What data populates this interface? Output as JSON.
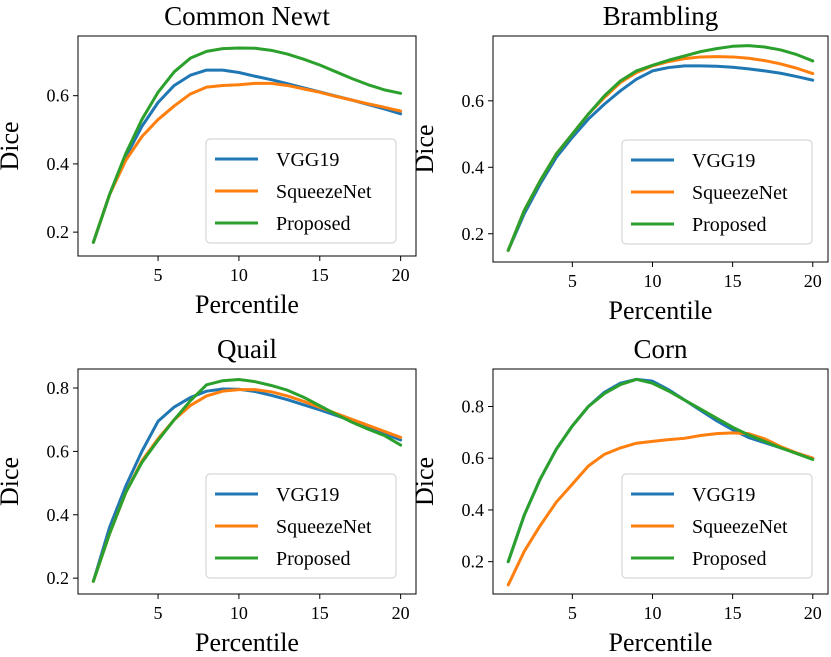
{
  "figure": {
    "ylabel": "Dice",
    "xlabel": "Percentile"
  },
  "chart_data": [
    {
      "type": "line",
      "title": "Common Newt",
      "xlabel": "Percentile",
      "ylabel": "Dice",
      "xlim": [
        0.05,
        20.95
      ],
      "ylim": [
        0.13,
        0.775
      ],
      "xticks": [
        5,
        10,
        15,
        20
      ],
      "xtick_labels": [
        "5",
        "10",
        "15",
        "20"
      ],
      "yticks": [
        0.2,
        0.4,
        0.6
      ],
      "ytick_labels": [
        "0.2",
        "0.4",
        "0.6"
      ],
      "legend": "lower-right",
      "x": [
        1,
        2,
        3,
        4,
        5,
        6,
        7,
        8,
        9,
        10,
        11,
        12,
        13,
        14,
        15,
        16,
        17,
        18,
        19,
        20
      ],
      "series": [
        {
          "name": "VGG19",
          "color": "#1f77b4",
          "values": [
            0.17,
            0.31,
            0.42,
            0.51,
            0.58,
            0.63,
            0.66,
            0.675,
            0.675,
            0.668,
            0.657,
            0.647,
            0.635,
            0.623,
            0.611,
            0.599,
            0.587,
            0.574,
            0.561,
            0.547
          ]
        },
        {
          "name": "SqueezeNet",
          "color": "#ff7f0e",
          "values": [
            0.17,
            0.31,
            0.41,
            0.48,
            0.53,
            0.57,
            0.605,
            0.625,
            0.63,
            0.632,
            0.636,
            0.636,
            0.63,
            0.62,
            0.61,
            0.598,
            0.587,
            0.576,
            0.566,
            0.555
          ]
        },
        {
          "name": "Proposed",
          "color": "#2ca02c",
          "values": [
            0.17,
            0.31,
            0.43,
            0.53,
            0.61,
            0.67,
            0.71,
            0.73,
            0.738,
            0.74,
            0.739,
            0.733,
            0.722,
            0.707,
            0.69,
            0.67,
            0.65,
            0.632,
            0.617,
            0.607
          ]
        }
      ]
    },
    {
      "type": "line",
      "title": "Brambling",
      "xlabel": "Percentile",
      "ylabel": "Dice",
      "xlim": [
        0.05,
        20.95
      ],
      "ylim": [
        0.115,
        0.795
      ],
      "xticks": [
        5,
        10,
        15,
        20
      ],
      "xtick_labels": [
        "5",
        "10",
        "15",
        "20"
      ],
      "yticks": [
        0.2,
        0.4,
        0.6
      ],
      "ytick_labels": [
        "0.2",
        "0.4",
        "0.6"
      ],
      "legend": "lower-right",
      "x": [
        1,
        2,
        3,
        4,
        5,
        6,
        7,
        8,
        9,
        10,
        11,
        12,
        13,
        14,
        15,
        16,
        17,
        18,
        19,
        20
      ],
      "series": [
        {
          "name": "VGG19",
          "color": "#1f77b4",
          "values": [
            0.15,
            0.26,
            0.35,
            0.43,
            0.49,
            0.545,
            0.59,
            0.63,
            0.665,
            0.69,
            0.7,
            0.705,
            0.705,
            0.704,
            0.701,
            0.696,
            0.69,
            0.683,
            0.673,
            0.662
          ]
        },
        {
          "name": "SqueezeNet",
          "color": "#ff7f0e",
          "values": [
            0.15,
            0.27,
            0.36,
            0.44,
            0.5,
            0.56,
            0.61,
            0.655,
            0.685,
            0.705,
            0.718,
            0.727,
            0.732,
            0.733,
            0.732,
            0.728,
            0.721,
            0.711,
            0.698,
            0.682
          ]
        },
        {
          "name": "Proposed",
          "color": "#2ca02c",
          "values": [
            0.15,
            0.27,
            0.36,
            0.44,
            0.5,
            0.56,
            0.615,
            0.66,
            0.69,
            0.707,
            0.722,
            0.735,
            0.748,
            0.757,
            0.764,
            0.766,
            0.762,
            0.753,
            0.739,
            0.72
          ]
        }
      ]
    },
    {
      "type": "line",
      "title": "Quail",
      "xlabel": "Percentile",
      "ylabel": "Dice",
      "xlim": [
        0.05,
        20.95
      ],
      "ylim": [
        0.15,
        0.86
      ],
      "xticks": [
        5,
        10,
        15,
        20
      ],
      "xtick_labels": [
        "5",
        "10",
        "15",
        "20"
      ],
      "yticks": [
        0.2,
        0.4,
        0.6,
        0.8
      ],
      "ytick_labels": [
        "0.2",
        "0.4",
        "0.6",
        "0.8"
      ],
      "legend": "lower-right",
      "x": [
        1,
        2,
        3,
        4,
        5,
        6,
        7,
        8,
        9,
        10,
        11,
        12,
        13,
        14,
        15,
        16,
        17,
        18,
        19,
        20
      ],
      "series": [
        {
          "name": "VGG19",
          "color": "#1f77b4",
          "values": [
            0.19,
            0.36,
            0.49,
            0.6,
            0.695,
            0.74,
            0.77,
            0.79,
            0.797,
            0.796,
            0.789,
            0.777,
            0.763,
            0.747,
            0.731,
            0.714,
            0.696,
            0.676,
            0.656,
            0.636
          ]
        },
        {
          "name": "SqueezeNet",
          "color": "#ff7f0e",
          "values": [
            0.19,
            0.34,
            0.47,
            0.57,
            0.64,
            0.7,
            0.745,
            0.775,
            0.79,
            0.795,
            0.795,
            0.788,
            0.775,
            0.758,
            0.739,
            0.72,
            0.701,
            0.682,
            0.663,
            0.644
          ]
        },
        {
          "name": "Proposed",
          "color": "#2ca02c",
          "values": [
            0.19,
            0.34,
            0.47,
            0.565,
            0.635,
            0.7,
            0.76,
            0.81,
            0.823,
            0.827,
            0.82,
            0.808,
            0.793,
            0.771,
            0.744,
            0.717,
            0.692,
            0.67,
            0.65,
            0.62
          ]
        }
      ]
    },
    {
      "type": "line",
      "title": "Corn",
      "xlabel": "Percentile",
      "ylabel": "Dice",
      "xlim": [
        0.05,
        20.95
      ],
      "ylim": [
        0.075,
        0.945
      ],
      "xticks": [
        5,
        10,
        15,
        20
      ],
      "xtick_labels": [
        "5",
        "10",
        "15",
        "20"
      ],
      "yticks": [
        0.2,
        0.4,
        0.6,
        0.8
      ],
      "ytick_labels": [
        "0.2",
        "0.4",
        "0.6",
        "0.8"
      ],
      "legend": "lower-right",
      "x": [
        1,
        2,
        3,
        4,
        5,
        6,
        7,
        8,
        9,
        10,
        11,
        12,
        13,
        14,
        15,
        16,
        17,
        18,
        19,
        20
      ],
      "series": [
        {
          "name": "VGG19",
          "color": "#1f77b4",
          "values": [
            0.2,
            0.38,
            0.52,
            0.635,
            0.725,
            0.8,
            0.855,
            0.89,
            0.905,
            0.898,
            0.865,
            0.825,
            0.785,
            0.745,
            0.71,
            0.68,
            0.66,
            0.64,
            0.62,
            0.6
          ]
        },
        {
          "name": "SqueezeNet",
          "color": "#ff7f0e",
          "values": [
            0.11,
            0.24,
            0.34,
            0.43,
            0.5,
            0.57,
            0.615,
            0.64,
            0.658,
            0.665,
            0.672,
            0.677,
            0.688,
            0.695,
            0.698,
            0.695,
            0.675,
            0.645,
            0.62,
            0.6
          ]
        },
        {
          "name": "Proposed",
          "color": "#2ca02c",
          "values": [
            0.2,
            0.38,
            0.52,
            0.635,
            0.725,
            0.8,
            0.85,
            0.885,
            0.905,
            0.89,
            0.86,
            0.825,
            0.79,
            0.755,
            0.72,
            0.69,
            0.665,
            0.64,
            0.618,
            0.595
          ]
        }
      ]
    }
  ]
}
